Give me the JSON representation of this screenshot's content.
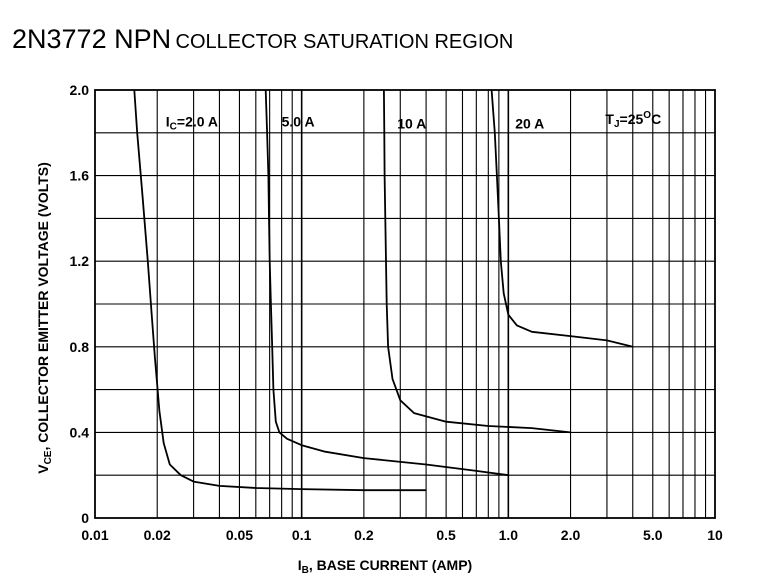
{
  "title": {
    "part_number": "2N3772 NPN",
    "region": "COLLECTOR SATURATION REGION"
  },
  "chart_data": {
    "type": "line",
    "x_scale": "log",
    "xlim": [
      0.01,
      10
    ],
    "ylim": [
      0,
      2.0
    ],
    "grid": true,
    "xlabel": {
      "symbol": "I",
      "sub": "B",
      "text": ", BASE CURRENT (AMP)"
    },
    "ylabel": {
      "symbol": "V",
      "sub": "CE",
      "text": ", COLLECTOR EMITTER VOLTAGE (VOLTS)"
    },
    "x_ticks": [
      {
        "value": 0.01,
        "label": "0.01"
      },
      {
        "value": 0.02,
        "label": "0.02"
      },
      {
        "value": 0.05,
        "label": "0.05"
      },
      {
        "value": 0.1,
        "label": "0.1"
      },
      {
        "value": 0.2,
        "label": "0.2"
      },
      {
        "value": 0.5,
        "label": "0.5"
      },
      {
        "value": 1.0,
        "label": "1.0"
      },
      {
        "value": 2.0,
        "label": "2.0"
      },
      {
        "value": 5.0,
        "label": "5.0"
      },
      {
        "value": 10,
        "label": "10"
      }
    ],
    "y_ticks": [
      {
        "value": 0,
        "label": "0"
      },
      {
        "value": 0.4,
        "label": "0.4"
      },
      {
        "value": 0.8,
        "label": "0.8"
      },
      {
        "value": 1.2,
        "label": "1.2"
      },
      {
        "value": 1.6,
        "label": "1.6"
      },
      {
        "value": 2.0,
        "label": "2.0"
      }
    ],
    "annotation": {
      "symbol": "T",
      "sub": "J",
      "text": "=25",
      "sup": "O",
      "unit": "C"
    },
    "series": [
      {
        "name": "IC=2.0 A",
        "label": {
          "symbol": "I",
          "sub": "C",
          "text": "=2.0 A"
        },
        "points": [
          [
            0.0155,
            2.0
          ],
          [
            0.016,
            1.8
          ],
          [
            0.017,
            1.5
          ],
          [
            0.018,
            1.2
          ],
          [
            0.0188,
            0.95
          ],
          [
            0.0195,
            0.75
          ],
          [
            0.0205,
            0.5
          ],
          [
            0.0215,
            0.35
          ],
          [
            0.023,
            0.25
          ],
          [
            0.026,
            0.2
          ],
          [
            0.03,
            0.17
          ],
          [
            0.04,
            0.15
          ],
          [
            0.06,
            0.14
          ],
          [
            0.1,
            0.135
          ],
          [
            0.2,
            0.13
          ],
          [
            0.4,
            0.13
          ]
        ]
      },
      {
        "name": "5.0 A",
        "label": {
          "text": "5.0 A"
        },
        "points": [
          [
            0.067,
            2.0
          ],
          [
            0.068,
            1.8
          ],
          [
            0.069,
            1.6
          ],
          [
            0.0695,
            1.4
          ],
          [
            0.07,
            1.2
          ],
          [
            0.071,
            1.0
          ],
          [
            0.072,
            0.8
          ],
          [
            0.073,
            0.6
          ],
          [
            0.075,
            0.45
          ],
          [
            0.078,
            0.4
          ],
          [
            0.085,
            0.37
          ],
          [
            0.1,
            0.34
          ],
          [
            0.13,
            0.31
          ],
          [
            0.2,
            0.28
          ],
          [
            0.4,
            0.25
          ],
          [
            0.7,
            0.22
          ],
          [
            1.0,
            0.2
          ]
        ]
      },
      {
        "name": "10 A",
        "label": {
          "text": "10 A"
        },
        "points": [
          [
            0.25,
            2.0
          ],
          [
            0.251,
            1.8
          ],
          [
            0.252,
            1.6
          ],
          [
            0.254,
            1.4
          ],
          [
            0.256,
            1.2
          ],
          [
            0.258,
            1.0
          ],
          [
            0.262,
            0.8
          ],
          [
            0.275,
            0.65
          ],
          [
            0.3,
            0.55
          ],
          [
            0.35,
            0.49
          ],
          [
            0.5,
            0.45
          ],
          [
            0.8,
            0.43
          ],
          [
            1.3,
            0.42
          ],
          [
            2.0,
            0.4
          ]
        ]
      },
      {
        "name": "20 A",
        "label": {
          "text": "20 A"
        },
        "points": [
          [
            0.83,
            2.0
          ],
          [
            0.86,
            1.8
          ],
          [
            0.88,
            1.6
          ],
          [
            0.9,
            1.4
          ],
          [
            0.92,
            1.2
          ],
          [
            0.95,
            1.05
          ],
          [
            1.0,
            0.95
          ],
          [
            1.1,
            0.9
          ],
          [
            1.3,
            0.87
          ],
          [
            2.0,
            0.85
          ],
          [
            3.0,
            0.83
          ],
          [
            4.0,
            0.8
          ]
        ]
      }
    ]
  }
}
